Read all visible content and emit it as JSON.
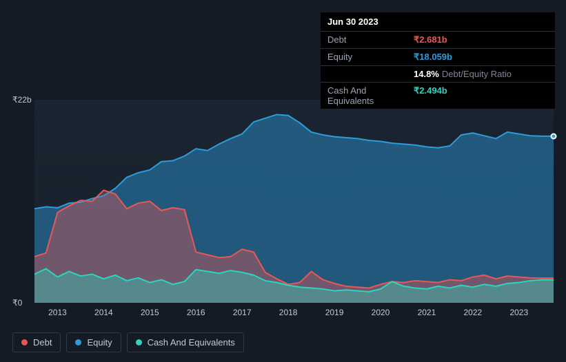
{
  "tooltip": {
    "date": "Jun 30 2023",
    "rows": [
      {
        "label": "Debt",
        "value": "₹2.681b",
        "color": "#eb5757"
      },
      {
        "label": "Equity",
        "value": "₹18.059b",
        "color": "#2d9cdb"
      },
      {
        "label": "",
        "value": "14.8%",
        "suffix": "Debt/Equity Ratio",
        "color": "#ffffff"
      },
      {
        "label": "Cash And Equivalents",
        "value": "₹2.494b",
        "color": "#2dd4bf"
      }
    ]
  },
  "chart": {
    "type": "area",
    "background_top": "#1a2531",
    "background_bottom": "#18202b",
    "ylim": [
      0,
      22
    ],
    "y_ticks": [
      {
        "v": 22,
        "label": "₹22b"
      },
      {
        "v": 0,
        "label": "₹0"
      }
    ],
    "x_years": [
      2013,
      2014,
      2015,
      2016,
      2017,
      2018,
      2019,
      2020,
      2021,
      2022,
      2023
    ],
    "x_min": 2012.5,
    "x_max": 2023.75,
    "series": {
      "equity": {
        "label": "Equity",
        "color": "#2d9cdb",
        "fill": "rgba(45,156,219,0.45)",
        "stroke_width": 2,
        "points": [
          [
            2012.5,
            10.2
          ],
          [
            2012.75,
            10.4
          ],
          [
            2013,
            10.3
          ],
          [
            2013.25,
            10.8
          ],
          [
            2013.5,
            10.9
          ],
          [
            2013.75,
            11.3
          ],
          [
            2014,
            11.6
          ],
          [
            2014.25,
            12.4
          ],
          [
            2014.5,
            13.6
          ],
          [
            2014.75,
            14.1
          ],
          [
            2015,
            14.4
          ],
          [
            2015.25,
            15.3
          ],
          [
            2015.5,
            15.4
          ],
          [
            2015.75,
            15.9
          ],
          [
            2016,
            16.7
          ],
          [
            2016.25,
            16.5
          ],
          [
            2016.5,
            17.2
          ],
          [
            2016.75,
            17.8
          ],
          [
            2017,
            18.3
          ],
          [
            2017.25,
            19.6
          ],
          [
            2017.5,
            20.0
          ],
          [
            2017.75,
            20.4
          ],
          [
            2018,
            20.3
          ],
          [
            2018.25,
            19.5
          ],
          [
            2018.5,
            18.5
          ],
          [
            2018.75,
            18.2
          ],
          [
            2019,
            18.0
          ],
          [
            2019.25,
            17.9
          ],
          [
            2019.5,
            17.8
          ],
          [
            2019.75,
            17.6
          ],
          [
            2020,
            17.5
          ],
          [
            2020.25,
            17.3
          ],
          [
            2020.5,
            17.2
          ],
          [
            2020.75,
            17.1
          ],
          [
            2021,
            16.9
          ],
          [
            2021.25,
            16.8
          ],
          [
            2021.5,
            17.0
          ],
          [
            2021.75,
            18.2
          ],
          [
            2022,
            18.4
          ],
          [
            2022.25,
            18.1
          ],
          [
            2022.5,
            17.8
          ],
          [
            2022.75,
            18.5
          ],
          [
            2023,
            18.3
          ],
          [
            2023.25,
            18.1
          ],
          [
            2023.5,
            18.06
          ],
          [
            2023.75,
            18.06
          ]
        ]
      },
      "debt": {
        "label": "Debt",
        "color": "#eb5757",
        "fill": "rgba(235,87,87,0.40)",
        "stroke_width": 2,
        "points": [
          [
            2012.5,
            5.0
          ],
          [
            2012.75,
            5.4
          ],
          [
            2013,
            9.8
          ],
          [
            2013.25,
            10.5
          ],
          [
            2013.5,
            11.1
          ],
          [
            2013.75,
            11.0
          ],
          [
            2014,
            12.2
          ],
          [
            2014.25,
            11.8
          ],
          [
            2014.5,
            10.2
          ],
          [
            2014.75,
            10.8
          ],
          [
            2015,
            11.0
          ],
          [
            2015.25,
            10.0
          ],
          [
            2015.5,
            10.3
          ],
          [
            2015.75,
            10.1
          ],
          [
            2016,
            5.5
          ],
          [
            2016.25,
            5.2
          ],
          [
            2016.5,
            4.9
          ],
          [
            2016.75,
            5.0
          ],
          [
            2017,
            5.8
          ],
          [
            2017.25,
            5.5
          ],
          [
            2017.5,
            3.3
          ],
          [
            2017.75,
            2.6
          ],
          [
            2018,
            2.0
          ],
          [
            2018.25,
            2.2
          ],
          [
            2018.5,
            3.4
          ],
          [
            2018.75,
            2.5
          ],
          [
            2019,
            2.1
          ],
          [
            2019.25,
            1.8
          ],
          [
            2019.5,
            1.7
          ],
          [
            2019.75,
            1.6
          ],
          [
            2020,
            2.0
          ],
          [
            2020.25,
            2.3
          ],
          [
            2020.5,
            2.2
          ],
          [
            2020.75,
            2.4
          ],
          [
            2021,
            2.3
          ],
          [
            2021.25,
            2.2
          ],
          [
            2021.5,
            2.5
          ],
          [
            2021.75,
            2.4
          ],
          [
            2022,
            2.8
          ],
          [
            2022.25,
            3.0
          ],
          [
            2022.5,
            2.6
          ],
          [
            2022.75,
            2.9
          ],
          [
            2023,
            2.8
          ],
          [
            2023.25,
            2.7
          ],
          [
            2023.5,
            2.68
          ],
          [
            2023.75,
            2.68
          ]
        ]
      },
      "cash": {
        "label": "Cash And Equivalents",
        "color": "#2dd4bf",
        "fill": "rgba(45,212,191,0.40)",
        "stroke_width": 2,
        "points": [
          [
            2012.5,
            3.1
          ],
          [
            2012.75,
            3.7
          ],
          [
            2013,
            2.8
          ],
          [
            2013.25,
            3.4
          ],
          [
            2013.5,
            2.9
          ],
          [
            2013.75,
            3.1
          ],
          [
            2014,
            2.6
          ],
          [
            2014.25,
            3.0
          ],
          [
            2014.5,
            2.4
          ],
          [
            2014.75,
            2.7
          ],
          [
            2015,
            2.2
          ],
          [
            2015.25,
            2.5
          ],
          [
            2015.5,
            2.0
          ],
          [
            2015.75,
            2.3
          ],
          [
            2016,
            3.6
          ],
          [
            2016.25,
            3.4
          ],
          [
            2016.5,
            3.2
          ],
          [
            2016.75,
            3.5
          ],
          [
            2017,
            3.3
          ],
          [
            2017.25,
            3.0
          ],
          [
            2017.5,
            2.4
          ],
          [
            2017.75,
            2.2
          ],
          [
            2018,
            1.9
          ],
          [
            2018.25,
            1.7
          ],
          [
            2018.5,
            1.6
          ],
          [
            2018.75,
            1.5
          ],
          [
            2019,
            1.3
          ],
          [
            2019.25,
            1.4
          ],
          [
            2019.5,
            1.3
          ],
          [
            2019.75,
            1.2
          ],
          [
            2020,
            1.5
          ],
          [
            2020.25,
            2.3
          ],
          [
            2020.5,
            1.8
          ],
          [
            2020.75,
            1.6
          ],
          [
            2021,
            1.5
          ],
          [
            2021.25,
            1.8
          ],
          [
            2021.5,
            1.6
          ],
          [
            2021.75,
            1.9
          ],
          [
            2022,
            1.7
          ],
          [
            2022.25,
            2.0
          ],
          [
            2022.5,
            1.8
          ],
          [
            2022.75,
            2.1
          ],
          [
            2023,
            2.2
          ],
          [
            2023.25,
            2.4
          ],
          [
            2023.5,
            2.49
          ],
          [
            2023.75,
            2.49
          ]
        ]
      }
    },
    "legend_order": [
      "debt",
      "equity",
      "cash"
    ]
  }
}
